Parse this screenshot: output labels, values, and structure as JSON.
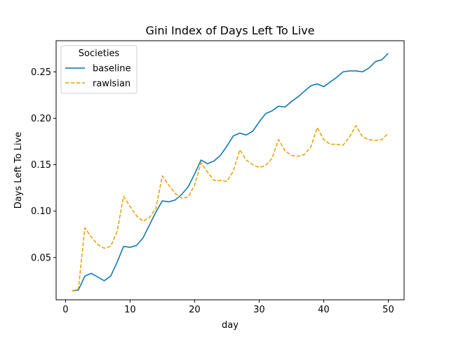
{
  "chart_data": {
    "type": "line",
    "title": "Gini Index of Days Left To Live",
    "xlabel": "day",
    "ylabel": "Days Left To Live",
    "xlim": [
      -1.45,
      52.45
    ],
    "ylim": [
      0.0045,
      0.2835
    ],
    "xticks": [
      0,
      10,
      20,
      30,
      40,
      50
    ],
    "xtick_labels": [
      "0",
      "10",
      "20",
      "30",
      "40",
      "50"
    ],
    "yticks": [
      0.05,
      0.1,
      0.15,
      0.2,
      0.25
    ],
    "ytick_labels": [
      "0.05",
      "0.10",
      "0.15",
      "0.20",
      "0.25"
    ],
    "grid": false,
    "legend": {
      "title": "Societies",
      "placement": "top-left"
    },
    "x": [
      1,
      2,
      3,
      4,
      5,
      6,
      7,
      8,
      9,
      10,
      11,
      12,
      13,
      14,
      15,
      16,
      17,
      18,
      19,
      20,
      21,
      22,
      23,
      24,
      25,
      26,
      27,
      28,
      29,
      30,
      31,
      32,
      33,
      34,
      35,
      36,
      37,
      38,
      39,
      40,
      41,
      42,
      43,
      44,
      45,
      46,
      47,
      48,
      49,
      50
    ],
    "series": [
      {
        "name": "baseline",
        "color": "#0072B2",
        "style": "solid",
        "values": [
          0.014,
          0.015,
          0.03,
          0.033,
          0.029,
          0.025,
          0.03,
          0.045,
          0.062,
          0.061,
          0.063,
          0.071,
          0.085,
          0.099,
          0.111,
          0.11,
          0.112,
          0.118,
          0.126,
          0.14,
          0.155,
          0.151,
          0.154,
          0.16,
          0.17,
          0.181,
          0.184,
          0.182,
          0.186,
          0.196,
          0.205,
          0.208,
          0.213,
          0.212,
          0.218,
          0.223,
          0.229,
          0.235,
          0.237,
          0.234,
          0.239,
          0.244,
          0.25,
          0.251,
          0.251,
          0.25,
          0.254,
          0.261,
          0.263,
          0.27
        ]
      },
      {
        "name": "rawlsian",
        "color": "#E69F00",
        "style": "dashed",
        "values": [
          0.014,
          0.016,
          0.082,
          0.072,
          0.064,
          0.06,
          0.062,
          0.078,
          0.116,
          0.105,
          0.095,
          0.089,
          0.093,
          0.103,
          0.138,
          0.128,
          0.119,
          0.114,
          0.115,
          0.128,
          0.152,
          0.142,
          0.133,
          0.133,
          0.132,
          0.143,
          0.166,
          0.155,
          0.15,
          0.147,
          0.149,
          0.157,
          0.177,
          0.165,
          0.16,
          0.159,
          0.161,
          0.169,
          0.19,
          0.177,
          0.172,
          0.172,
          0.171,
          0.18,
          0.192,
          0.18,
          0.177,
          0.176,
          0.177,
          0.184
        ]
      }
    ]
  }
}
